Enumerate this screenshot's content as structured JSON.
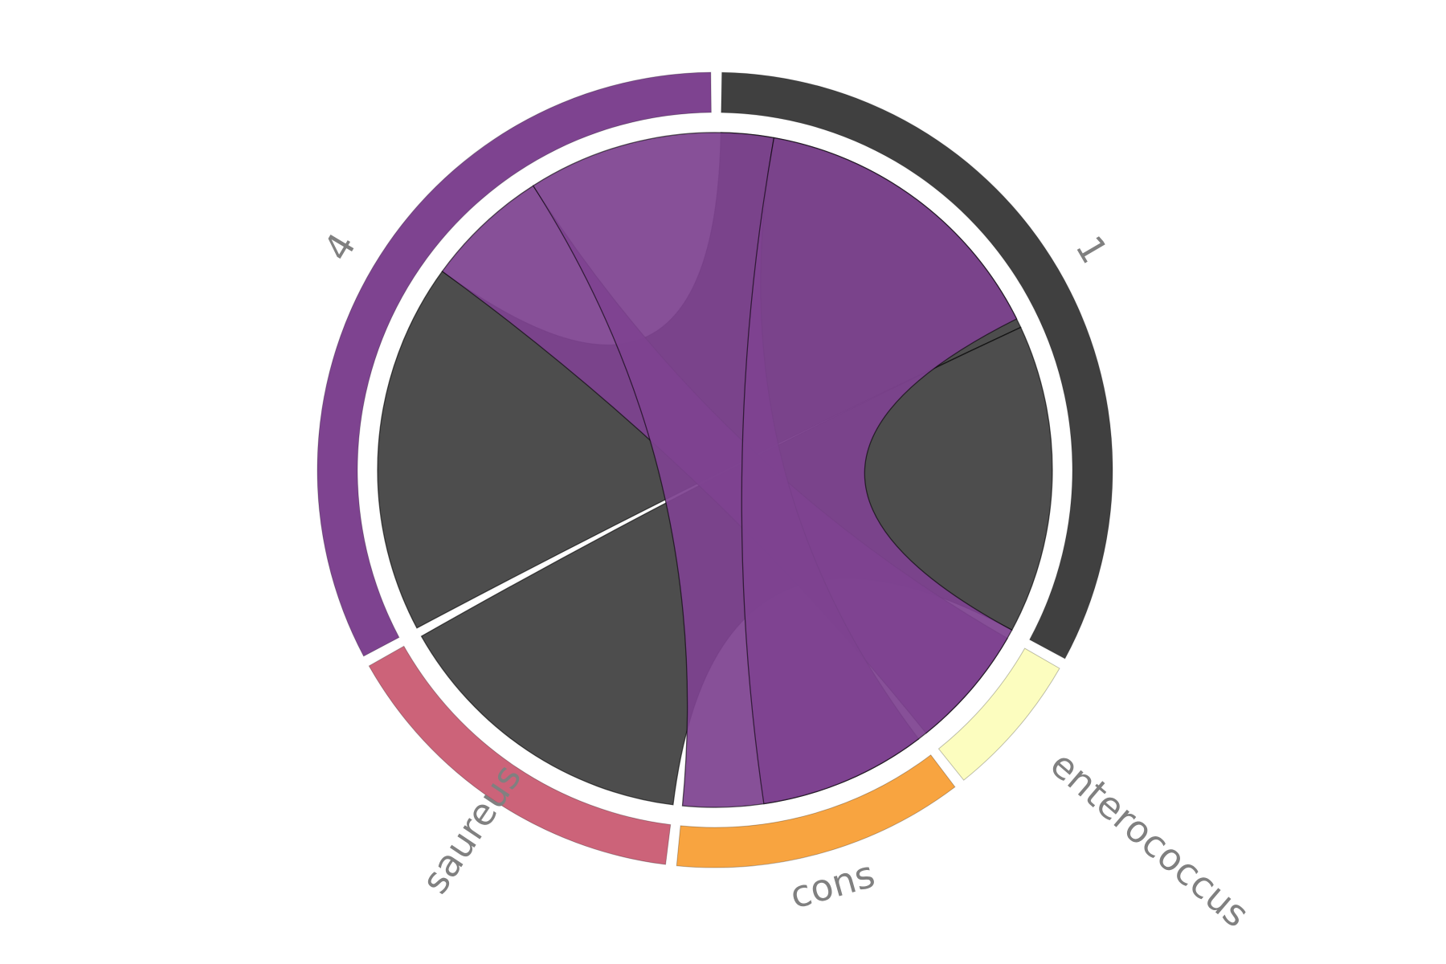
{
  "chart_data": {
    "type": "chord",
    "title": "",
    "groups": [
      {
        "id": "g1",
        "label": "1",
        "color": "#404040",
        "value": 11
      },
      {
        "id": "enterococcus",
        "label": "enterococcus",
        "color": "#fcfdbf",
        "value": 2
      },
      {
        "id": "cons",
        "label": "cons",
        "color": "#f8a440",
        "value": 4
      },
      {
        "id": "saureus",
        "label": "saureus",
        "color": "#cc6379",
        "value": 5
      },
      {
        "id": "g4",
        "label": "4",
        "color": "#7e4390",
        "value": 11
      }
    ],
    "links": [
      {
        "source": "g1",
        "target": "g4",
        "value": 6,
        "color": "#404040"
      },
      {
        "source": "g1",
        "target": "saureus",
        "value": 5,
        "color": "#404040"
      },
      {
        "source": "g4",
        "target": "enterococcus",
        "value": 2,
        "color": "#7e4390"
      },
      {
        "source": "g4",
        "target": "cons",
        "value": 4,
        "color": "#7e4390"
      },
      {
        "source": "g4",
        "target": "g1",
        "value": 5,
        "color": "#7e4390"
      }
    ]
  }
}
